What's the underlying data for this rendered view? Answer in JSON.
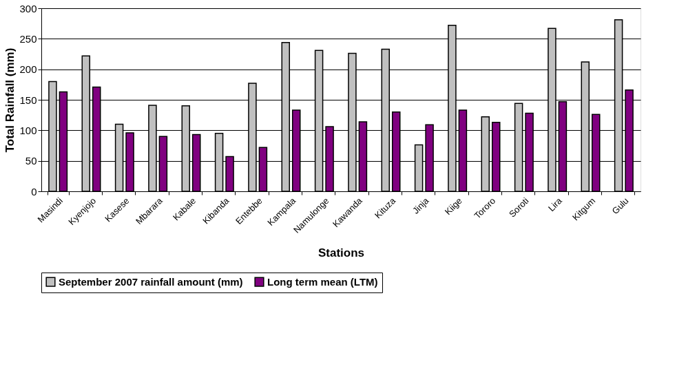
{
  "chart_data": {
    "type": "bar",
    "xlabel": "Stations",
    "ylabel": "Total Rainfall (mm)",
    "categories": [
      "Masindi",
      "Kyenjojo",
      "Kasese",
      "Mbarara",
      "Kabale",
      "Kibanda",
      "Entebbe",
      "Kampala",
      "Namulonge",
      "Kawanda",
      "Kituza",
      "Jinja",
      "Kiige",
      "Tororo",
      "Soroti",
      "Lira",
      "Kitgum",
      "Gulu"
    ],
    "series": [
      {
        "name": "September 2007 rainfall amount (mm)",
        "color": "#c0c0c0",
        "values": [
          180,
          222,
          110,
          141,
          140,
          95,
          177,
          244,
          231,
          226,
          233,
          76,
          272,
          122,
          144,
          267,
          212,
          281
        ]
      },
      {
        "name": "Long term mean (LTM)",
        "color": "#800080",
        "values": [
          163,
          171,
          96,
          90,
          93,
          57,
          72,
          133,
          106,
          114,
          130,
          109,
          133,
          113,
          128,
          147,
          126,
          166
        ]
      }
    ],
    "ylim": [
      0,
      300
    ],
    "yticks": [
      0,
      50,
      100,
      150,
      200,
      250,
      300
    ],
    "grid": "y",
    "legend": "bottom"
  }
}
